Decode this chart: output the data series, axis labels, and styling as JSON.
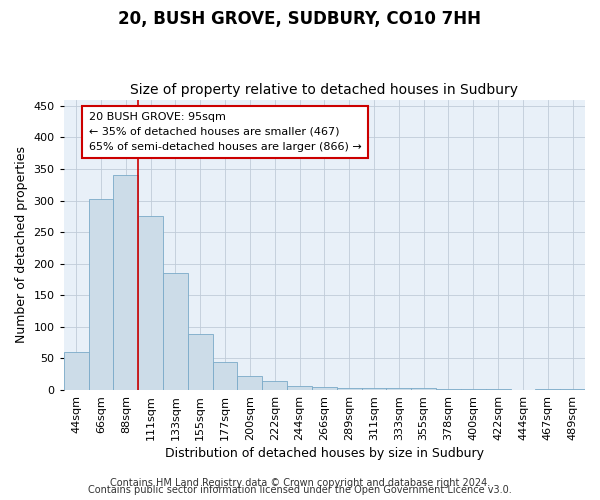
{
  "title": "20, BUSH GROVE, SUDBURY, CO10 7HH",
  "subtitle": "Size of property relative to detached houses in Sudbury",
  "xlabel": "Distribution of detached houses by size in Sudbury",
  "ylabel": "Number of detached properties",
  "categories": [
    "44sqm",
    "66sqm",
    "88sqm",
    "111sqm",
    "133sqm",
    "155sqm",
    "177sqm",
    "200sqm",
    "222sqm",
    "244sqm",
    "266sqm",
    "289sqm",
    "311sqm",
    "333sqm",
    "355sqm",
    "378sqm",
    "400sqm",
    "422sqm",
    "444sqm",
    "467sqm",
    "489sqm"
  ],
  "values": [
    60,
    302,
    340,
    275,
    185,
    88,
    45,
    23,
    14,
    7,
    5,
    4,
    3,
    3,
    3,
    2,
    1,
    2,
    0,
    1,
    2
  ],
  "bar_color": "#ccdce8",
  "bar_edge_color": "#7aaac8",
  "redline_x": 2.5,
  "annotation_line1": "20 BUSH GROVE: 95sqm",
  "annotation_line2": "← 35% of detached houses are smaller (467)",
  "annotation_line3": "65% of semi-detached houses are larger (866) →",
  "redline_color": "#cc0000",
  "ylim": [
    0,
    460
  ],
  "yticks": [
    0,
    50,
    100,
    150,
    200,
    250,
    300,
    350,
    400,
    450
  ],
  "footer1": "Contains HM Land Registry data © Crown copyright and database right 2024.",
  "footer2": "Contains public sector information licensed under the Open Government Licence v3.0.",
  "bg_color": "#ffffff",
  "plot_bg_color": "#e8f0f8",
  "grid_color": "#c0ccd8",
  "title_fontsize": 12,
  "subtitle_fontsize": 10,
  "axis_label_fontsize": 9,
  "tick_fontsize": 8,
  "annotation_fontsize": 8,
  "footer_fontsize": 7
}
